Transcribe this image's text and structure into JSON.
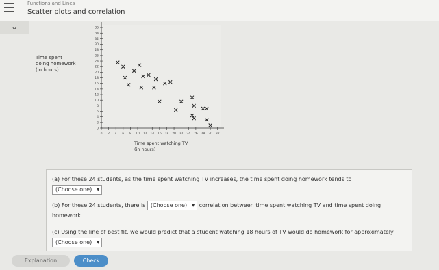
{
  "header": {
    "breadcrumb": "Functions and Lines",
    "title": "Scatter plots and correlation"
  },
  "chart_data": {
    "type": "scatter",
    "y_label_lines": [
      "Time spent",
      "doing homework",
      "(in hours)"
    ],
    "x_label_lines": [
      "Time spent watching TV",
      "(in hours)"
    ],
    "x": [
      4.5,
      6,
      10.5,
      9,
      13,
      6.5,
      11.5,
      15,
      17.5,
      19,
      7.5,
      11,
      14.5,
      25,
      22,
      16,
      25.5,
      20.5,
      28,
      29,
      25,
      25.5,
      29,
      30
    ],
    "values": [
      23.5,
      22,
      22.5,
      20.5,
      19,
      18,
      18.5,
      17.5,
      16,
      16.5,
      15.5,
      14.5,
      14.5,
      11,
      9.5,
      9.5,
      8,
      6.5,
      7,
      7,
      4.5,
      3.5,
      3,
      1
    ],
    "color": "#222222",
    "xlim": [
      0,
      33
    ],
    "ylim": [
      0,
      37
    ],
    "xticks": [
      0,
      2,
      4,
      6,
      8,
      10,
      12,
      14,
      16,
      18,
      20,
      22,
      24,
      26,
      28,
      30,
      32
    ],
    "yticks": [
      0,
      2,
      4,
      6,
      8,
      10,
      12,
      14,
      16,
      18,
      20,
      22,
      24,
      26,
      28,
      30,
      32,
      34,
      36
    ]
  },
  "questions": [
    {
      "label": "(a)",
      "before": "For these 24 students, as the time spent watching TV increases, the time spent doing homework tends to",
      "dropdown": "(Choose one)"
    },
    {
      "label": "(b)",
      "before": "For these 24 students, there is",
      "dropdown": "(Choose one)",
      "after": "correlation between time spent watching TV and time spent doing homework."
    },
    {
      "label": "(c)",
      "before": "Using the line of best fit, we would predict that a student watching 18 hours of TV would do homework for approximately",
      "dropdown": "(Choose one)"
    }
  ],
  "buttons": [
    "Explanation",
    "Check"
  ]
}
